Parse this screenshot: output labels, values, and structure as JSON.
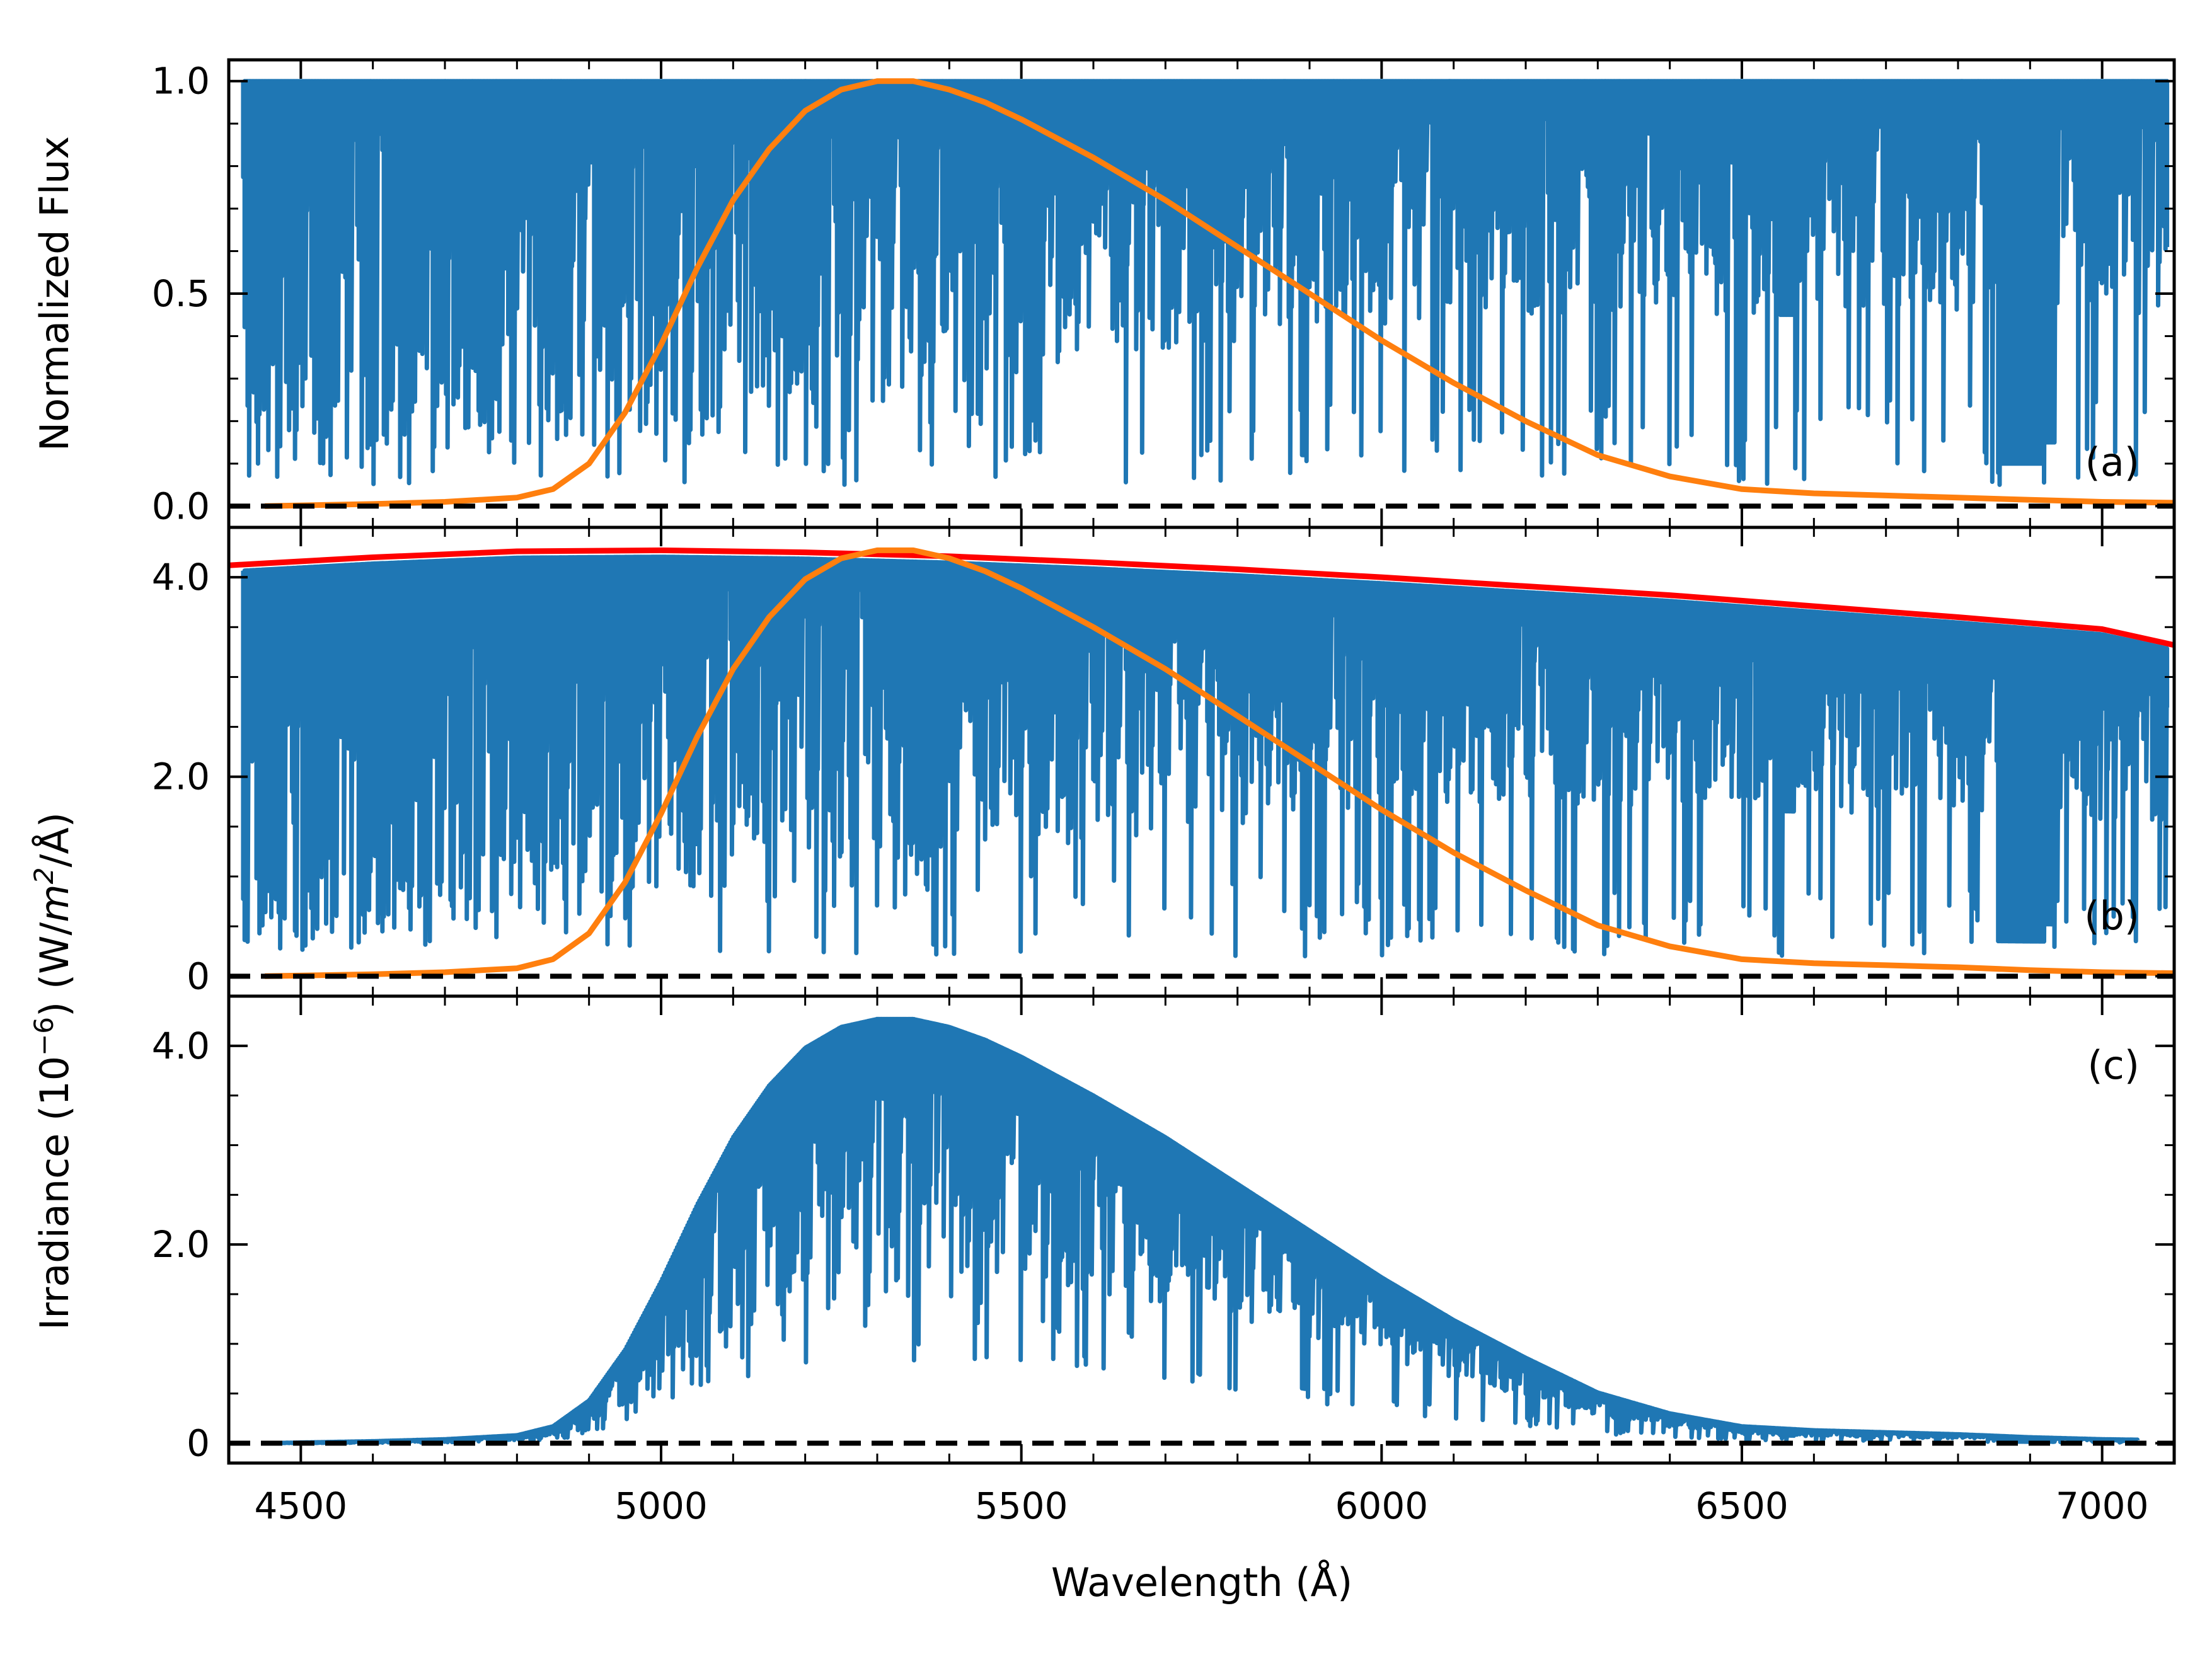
{
  "chart_data": {
    "type": "line",
    "shared_x_axis": {
      "xlabel": "Wavelength (Å)",
      "xlim": [
        4400,
        7100
      ],
      "ticks": [
        4500,
        5000,
        5500,
        6000,
        6500,
        7000
      ],
      "tick_labels": [
        "4500",
        "5000",
        "5500",
        "6000",
        "6500",
        "7000"
      ],
      "minor_tick_step": 100
    },
    "ylabel_shared_prefix": "Irradiance (10",
    "ylabel_shared_exp": "−6",
    "ylabel_shared_mid": ") (W/",
    "ylabel_shared_unit_m": "m",
    "ylabel_shared_unit_exp": "2",
    "ylabel_shared_suffix": "/Å)",
    "colors": {
      "spectrum": "#1f77b4",
      "filter": "#ff7f0e",
      "continuum": "#ff0000",
      "zero_line": "#000000"
    },
    "panels": [
      {
        "id": "a",
        "tag": "(a)",
        "ylabel": "Normalized Flux",
        "ylim": [
          -0.05,
          1.05
        ],
        "yticks": [
          0.0,
          0.5,
          1.0
        ],
        "ytick_labels": [
          "0.0",
          "0.5",
          "1.0"
        ],
        "minor_tick_step": 0.1,
        "series": [
          {
            "name": "normalized spectrum",
            "kind": "absorption-spectrum",
            "continuum": 1.0
          },
          {
            "name": "filter transmission (normalized)",
            "kind": "line",
            "x": [
              4450,
              4600,
              4700,
              4800,
              4850,
              4900,
              4950,
              5000,
              5050,
              5100,
              5150,
              5200,
              5250,
              5300,
              5350,
              5400,
              5450,
              5500,
              5600,
              5700,
              5800,
              5900,
              6000,
              6100,
              6200,
              6300,
              6400,
              6500,
              6600,
              6700,
              6800,
              6900,
              7000,
              7100
            ],
            "y": [
              0.0,
              0.005,
              0.01,
              0.02,
              0.04,
              0.1,
              0.22,
              0.38,
              0.56,
              0.72,
              0.84,
              0.93,
              0.98,
              1.0,
              1.0,
              0.98,
              0.95,
              0.91,
              0.82,
              0.72,
              0.61,
              0.5,
              0.39,
              0.29,
              0.2,
              0.12,
              0.07,
              0.04,
              0.03,
              0.025,
              0.02,
              0.015,
              0.01,
              0.008
            ]
          },
          {
            "name": "zero level",
            "kind": "dashed-line",
            "y": 0.0
          }
        ]
      },
      {
        "id": "b",
        "tag": "(b)",
        "ylim": [
          -0.2,
          4.5
        ],
        "yticks": [
          0,
          2.0,
          4.0
        ],
        "ytick_labels": [
          "0",
          "2.0",
          "4.0"
        ],
        "minor_tick_step": 0.5,
        "series": [
          {
            "name": "continuum (blackbody)",
            "kind": "line",
            "x": [
              4400,
              4600,
              4800,
              5000,
              5200,
              5400,
              5600,
              5800,
              6000,
              6200,
              6400,
              6600,
              6800,
              7000,
              7100
            ],
            "y": [
              4.12,
              4.2,
              4.26,
              4.27,
              4.25,
              4.21,
              4.15,
              4.08,
              4.0,
              3.91,
              3.82,
              3.71,
              3.6,
              3.48,
              3.32
            ]
          },
          {
            "name": "observed spectrum",
            "kind": "absorption-spectrum",
            "scaled_by": "continuum (blackbody)"
          },
          {
            "name": "filter transmission (scaled)",
            "kind": "line",
            "x": [
              4450,
              4600,
              4700,
              4800,
              4850,
              4900,
              4950,
              5000,
              5050,
              5100,
              5150,
              5200,
              5250,
              5300,
              5350,
              5400,
              5450,
              5500,
              5600,
              5700,
              5800,
              5900,
              6000,
              6100,
              6200,
              6300,
              6400,
              6500,
              6600,
              6700,
              6800,
              6900,
              7000,
              7100
            ],
            "y": [
              0.0,
              0.02,
              0.04,
              0.08,
              0.17,
              0.43,
              0.94,
              1.63,
              2.4,
              3.08,
              3.6,
              3.98,
              4.19,
              4.27,
              4.27,
              4.19,
              4.06,
              3.89,
              3.5,
              3.08,
              2.61,
              2.14,
              1.67,
              1.24,
              0.86,
              0.51,
              0.3,
              0.17,
              0.13,
              0.11,
              0.09,
              0.06,
              0.04,
              0.03
            ]
          },
          {
            "name": "zero level",
            "kind": "dashed-line",
            "y": 0.0
          }
        ]
      },
      {
        "id": "c",
        "tag": "(c)",
        "ylim": [
          -0.2,
          4.5
        ],
        "yticks": [
          0,
          2.0,
          4.0
        ],
        "ytick_labels": [
          "0",
          "2.0",
          "4.0"
        ],
        "minor_tick_step": 0.5,
        "series": [
          {
            "name": "filtered irradiance",
            "kind": "absorption-spectrum",
            "envelope": "filter transmission (scaled)",
            "x_range": [
              4450,
              7050
            ]
          },
          {
            "name": "zero level",
            "kind": "dashed-line",
            "y": 0.0
          }
        ]
      }
    ]
  }
}
